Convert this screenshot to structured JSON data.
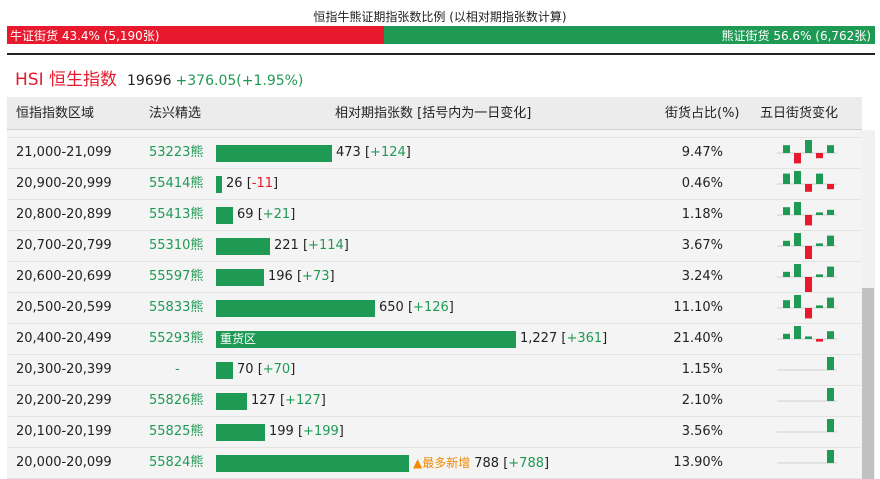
{
  "title": "恒指牛熊证期指张数比例 (以相对期指张数计算)",
  "ratio": {
    "bull_label": "牛证街货 43.4% (5,190张)",
    "bear_label": "熊证街货 56.6% (6,762张)",
    "bull_fraction": 0.434
  },
  "index": {
    "name": "HSI 恒生指数",
    "value": "19696",
    "change": "+376.05(+1.95%)"
  },
  "headers": {
    "range": "恒指指数区域",
    "code": "法兴精选",
    "contracts": "相对期指张数 [括号内为一日变化]",
    "pct": "街货占比(%)",
    "five_day": "五日街货变化"
  },
  "rows": [
    {
      "range": "21,000-21,099",
      "code": "53223熊",
      "contracts": "473",
      "delta": "+124",
      "pct": "9.47%",
      "contracts_num": 473,
      "five_day": [
        3,
        -4,
        5,
        -2,
        3
      ]
    },
    {
      "range": "20,900-20,999",
      "code": "55414熊",
      "contracts": "26",
      "delta": "-11",
      "pct": "0.46%",
      "contracts_num": 26,
      "five_day": [
        4,
        5,
        -3,
        4,
        -2
      ]
    },
    {
      "range": "20,800-20,899",
      "code": "55413熊",
      "contracts": "69",
      "delta": "+21",
      "pct": "1.18%",
      "contracts_num": 69,
      "five_day": [
        3,
        5,
        -4,
        1,
        2
      ]
    },
    {
      "range": "20,700-20,799",
      "code": "55310熊",
      "contracts": "221",
      "delta": "+114",
      "pct": "3.67%",
      "contracts_num": 221,
      "five_day": [
        2,
        5,
        -5,
        1,
        4
      ]
    },
    {
      "range": "20,600-20,699",
      "code": "55597熊",
      "contracts": "196",
      "delta": "+73",
      "pct": "3.24%",
      "contracts_num": 196,
      "five_day": [
        2,
        5,
        -6,
        1,
        4
      ]
    },
    {
      "range": "20,500-20,599",
      "code": "55833熊",
      "contracts": "650",
      "delta": "+126",
      "pct": "11.10%",
      "contracts_num": 650,
      "five_day": [
        3,
        5,
        -4,
        1,
        4
      ]
    },
    {
      "range": "20,400-20,499",
      "code": "55293熊",
      "contracts": "1,227",
      "delta": "+361",
      "pct": "21.40%",
      "contracts_num": 1227,
      "in_bar_label": "重货区",
      "five_day": [
        2,
        5,
        1,
        -1,
        3
      ]
    },
    {
      "range": "20,300-20,399",
      "code": "-",
      "contracts": "70",
      "delta": "+70",
      "pct": "1.15%",
      "contracts_num": 70,
      "five_day": [
        0,
        0,
        0,
        0,
        5
      ]
    },
    {
      "range": "20,200-20,299",
      "code": "55826熊",
      "contracts": "127",
      "delta": "+127",
      "pct": "2.10%",
      "contracts_num": 127,
      "five_day": [
        0,
        0,
        0,
        0,
        5
      ]
    },
    {
      "range": "20,100-20,199",
      "code": "55825熊",
      "contracts": "199",
      "delta": "+199",
      "pct": "3.56%",
      "contracts_num": 199,
      "five_day": [
        0,
        0,
        0,
        0,
        5
      ]
    },
    {
      "range": "20,000-20,099",
      "code": "55824熊",
      "contracts": "788",
      "delta": "+788",
      "pct": "13.90%",
      "contracts_num": 788,
      "annotation": "▲最多新增",
      "five_day": [
        0,
        0,
        0,
        0,
        5
      ]
    }
  ],
  "colors": {
    "bull": "#e8192c",
    "bear": "#1f9a55",
    "accent_orange": "#f08a00"
  }
}
